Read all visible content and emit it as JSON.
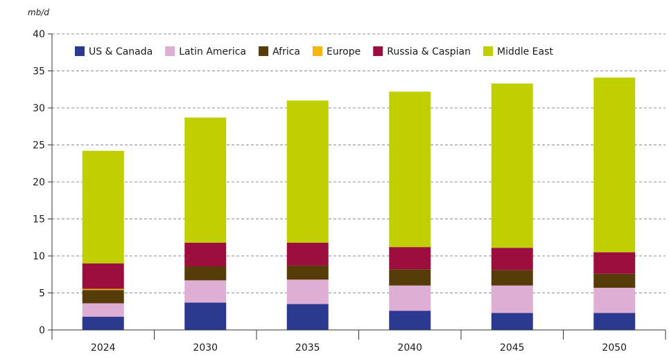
{
  "chart_data": {
    "type": "bar",
    "stacked": true,
    "ylabel": "mb/d",
    "ylim": [
      0,
      40
    ],
    "yticks": [
      0,
      5,
      10,
      15,
      20,
      25,
      30,
      35,
      40
    ],
    "grid": true,
    "legend_position": "top",
    "categories": [
      "2024",
      "2030",
      "2035",
      "2040",
      "2045",
      "2050"
    ],
    "series": [
      {
        "name": "US & Canada",
        "color": "#2b3990",
        "values": [
          1.8,
          3.7,
          3.5,
          2.6,
          2.3,
          2.3
        ]
      },
      {
        "name": "Latin America",
        "color": "#dfaed4",
        "values": [
          1.8,
          3.0,
          3.3,
          3.4,
          3.7,
          3.4
        ]
      },
      {
        "name": "Africa",
        "color": "#553c08",
        "values": [
          1.8,
          1.9,
          1.9,
          2.2,
          2.1,
          1.9
        ]
      },
      {
        "name": "Europe",
        "color": "#f5b50f",
        "values": [
          0.15,
          0,
          0,
          0,
          0,
          0
        ]
      },
      {
        "name": "Russia & Caspian",
        "color": "#9c0e3e",
        "values": [
          3.45,
          3.2,
          3.1,
          3.0,
          3.0,
          2.9
        ]
      },
      {
        "name": "Middle East",
        "color": "#c0cf00",
        "values": [
          15.2,
          16.9,
          19.2,
          21.0,
          22.2,
          23.6
        ]
      }
    ]
  }
}
